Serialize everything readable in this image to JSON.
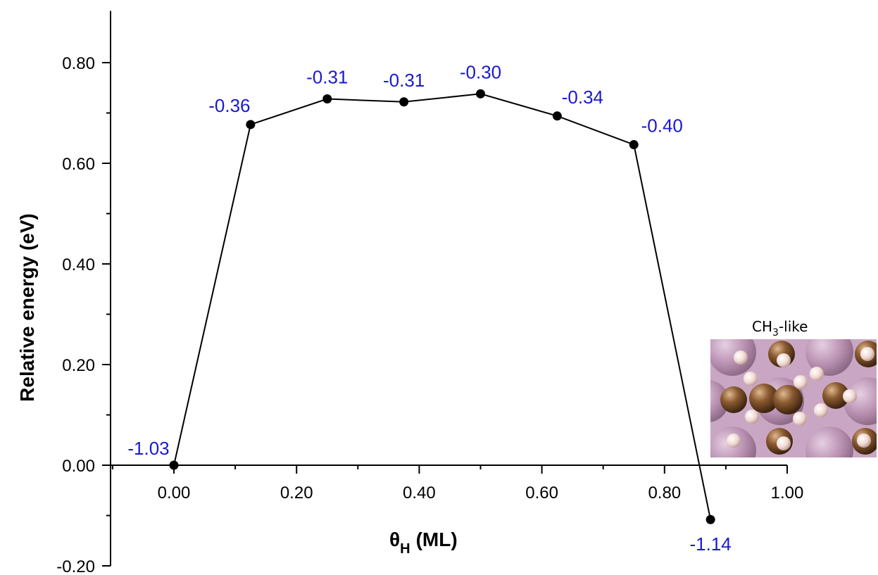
{
  "chart_data": {
    "type": "line",
    "xlabel_symbol": "θ",
    "xlabel_subscript": "H",
    "xlabel_unit": "(ML)",
    "ylabel": "Relative energy (eV)",
    "xlim": [
      -0.1,
      1.0
    ],
    "ylim": [
      -0.2,
      0.9
    ],
    "x_ticks": [
      0.0,
      0.2,
      0.4,
      0.6,
      0.8,
      1.0
    ],
    "x_tick_labels": [
      "0.00",
      "0.20",
      "0.40",
      "0.60",
      "0.80",
      "1.00"
    ],
    "y_ticks": [
      -0.2,
      0.0,
      0.2,
      0.4,
      0.6,
      0.8
    ],
    "y_tick_labels": [
      "-0.20",
      "0.00",
      "0.20",
      "0.40",
      "0.60",
      "0.80"
    ],
    "grid": false,
    "series": [
      {
        "x": [
          0.0,
          0.125,
          0.25,
          0.375,
          0.5,
          0.625,
          0.75,
          0.875
        ],
        "y": [
          0.0,
          0.677,
          0.728,
          0.722,
          0.738,
          0.694,
          0.637,
          -0.108
        ],
        "point_labels": [
          "-1.03",
          "-0.36",
          "-0.31",
          "-0.31",
          "-0.30",
          "-0.34",
          "-0.40",
          "-1.14"
        ],
        "line_color": "#000000",
        "marker_color": "#000000"
      }
    ],
    "label_color": "#1a1acc",
    "inset": {
      "title_main": "CH",
      "title_sub": "3",
      "title_suffix": "-like"
    }
  }
}
